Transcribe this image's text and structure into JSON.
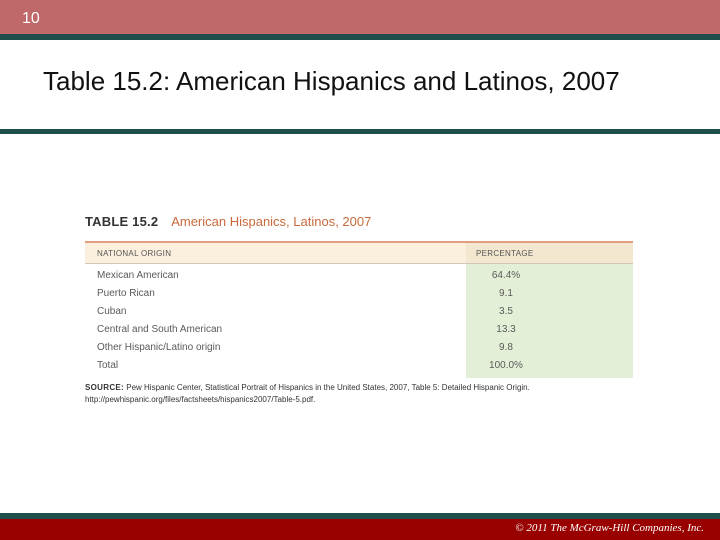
{
  "slide": {
    "number": "10",
    "title": "Table 15.2: American Hispanics and Latinos, 2007",
    "copyright": "© 2011 The McGraw-Hill Companies, Inc."
  },
  "table": {
    "number_label": "TABLE 15.2",
    "title": "American Hispanics, Latinos, 2007",
    "headers": [
      "NATIONAL ORIGIN",
      "PERCENTAGE"
    ],
    "rows": [
      {
        "origin": "Mexican American",
        "percentage": "64.4%"
      },
      {
        "origin": "Puerto Rican",
        "percentage": "9.1"
      },
      {
        "origin": "Cuban",
        "percentage": "3.5"
      },
      {
        "origin": "Central and South American",
        "percentage": "13.3"
      },
      {
        "origin": "Other Hispanic/Latino origin",
        "percentage": "9.8"
      },
      {
        "origin": "Total",
        "percentage": "100.0%"
      }
    ],
    "source_label": "SOURCE:",
    "source_text": "Pew Hispanic Center, Statistical Portrait of Hispanics in the United States, 2007, Table 5: Detailed Hispanic Origin. http://pewhispanic.org/files/factsheets/hispanics2007/Table-5.pdf."
  },
  "colors": {
    "top_bar": "#c0696a",
    "accent_line": "#1f4f4c",
    "bottom_bar": "#990000",
    "table_title": "#c86a3c",
    "percentage_column": "#e4efd7"
  }
}
